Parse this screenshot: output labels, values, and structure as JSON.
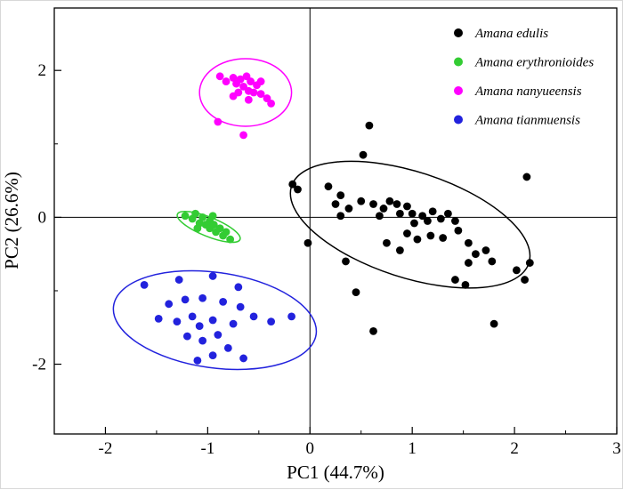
{
  "chart_data": {
    "type": "scatter",
    "title": "",
    "xlabel": "PC1 (44.7%)",
    "ylabel": "PC2 (26.6%)",
    "xlim": [
      -2.5,
      3.0
    ],
    "ylim": [
      -2.95,
      2.85
    ],
    "x_ticks": [
      -2,
      -1,
      0,
      1,
      2,
      3
    ],
    "y_ticks": [
      -2,
      0,
      2
    ],
    "x_minor_step": 0.5,
    "y_minor_step": 1,
    "grid": false,
    "legend_position": "top-right",
    "reference_lines": {
      "vertical_x": 0,
      "horizontal_y": 0
    },
    "series": [
      {
        "id": "amana-edulis",
        "name": "Amana edulis",
        "color": "#000000",
        "ellipse": {
          "cx": 0.98,
          "cy": -0.1,
          "rx": 1.22,
          "ry": 0.72,
          "angle": -18
        },
        "points": [
          [
            0.58,
            1.25
          ],
          [
            0.52,
            0.85
          ],
          [
            -0.17,
            0.45
          ],
          [
            -0.12,
            0.38
          ],
          [
            0.18,
            0.42
          ],
          [
            0.3,
            0.3
          ],
          [
            0.25,
            0.18
          ],
          [
            0.38,
            0.12
          ],
          [
            0.5,
            0.22
          ],
          [
            0.3,
            0.02
          ],
          [
            0.62,
            0.18
          ],
          [
            0.72,
            0.12
          ],
          [
            0.68,
            0.02
          ],
          [
            0.78,
            0.22
          ],
          [
            0.85,
            0.18
          ],
          [
            0.88,
            0.05
          ],
          [
            0.95,
            0.15
          ],
          [
            1.0,
            0.05
          ],
          [
            1.02,
            -0.08
          ],
          [
            1.1,
            0.02
          ],
          [
            1.15,
            -0.05
          ],
          [
            1.2,
            0.08
          ],
          [
            1.28,
            -0.02
          ],
          [
            1.35,
            0.05
          ],
          [
            1.42,
            -0.05
          ],
          [
            0.95,
            -0.22
          ],
          [
            1.05,
            -0.3
          ],
          [
            1.18,
            -0.25
          ],
          [
            1.3,
            -0.28
          ],
          [
            0.75,
            -0.35
          ],
          [
            0.88,
            -0.45
          ],
          [
            1.45,
            -0.18
          ],
          [
            1.55,
            -0.35
          ],
          [
            1.62,
            -0.5
          ],
          [
            1.72,
            -0.45
          ],
          [
            1.78,
            -0.6
          ],
          [
            1.55,
            -0.62
          ],
          [
            1.42,
            -0.85
          ],
          [
            1.52,
            -0.92
          ],
          [
            2.02,
            -0.72
          ],
          [
            2.1,
            -0.85
          ],
          [
            2.15,
            -0.62
          ],
          [
            2.12,
            0.55
          ],
          [
            0.45,
            -1.02
          ],
          [
            0.62,
            -1.55
          ],
          [
            1.8,
            -1.45
          ],
          [
            -0.02,
            -0.35
          ],
          [
            0.35,
            -0.6
          ]
        ]
      },
      {
        "id": "amana-erythronioides",
        "name": "Amana erythronioides",
        "color": "#33CC33",
        "ellipse": {
          "cx": -0.99,
          "cy": -0.13,
          "rx": 0.33,
          "ry": 0.13,
          "angle": -22
        },
        "points": [
          [
            -1.22,
            0.02
          ],
          [
            -1.15,
            -0.02
          ],
          [
            -1.12,
            0.05
          ],
          [
            -1.08,
            -0.08
          ],
          [
            -1.05,
            0.0
          ],
          [
            -1.02,
            -0.1
          ],
          [
            -0.98,
            -0.05
          ],
          [
            -0.98,
            -0.15
          ],
          [
            -0.94,
            -0.1
          ],
          [
            -0.92,
            -0.2
          ],
          [
            -0.88,
            -0.15
          ],
          [
            -0.85,
            -0.25
          ],
          [
            -0.82,
            -0.2
          ],
          [
            -0.78,
            -0.3
          ],
          [
            -1.1,
            -0.15
          ],
          [
            -0.95,
            0.02
          ]
        ]
      },
      {
        "id": "amana-nanyueensis",
        "name": "Amana nanyueensis",
        "color": "#FF00FF",
        "ellipse": {
          "cx": -0.63,
          "cy": 1.7,
          "rx": 0.45,
          "ry": 0.46,
          "angle": 0
        },
        "points": [
          [
            -0.88,
            1.92
          ],
          [
            -0.82,
            1.85
          ],
          [
            -0.75,
            1.9
          ],
          [
            -0.72,
            1.82
          ],
          [
            -0.68,
            1.88
          ],
          [
            -0.62,
            1.92
          ],
          [
            -0.58,
            1.85
          ],
          [
            -0.52,
            1.8
          ],
          [
            -0.48,
            1.85
          ],
          [
            -0.65,
            1.78
          ],
          [
            -0.6,
            1.72
          ],
          [
            -0.55,
            1.7
          ],
          [
            -0.7,
            1.7
          ],
          [
            -0.75,
            1.65
          ],
          [
            -0.48,
            1.68
          ],
          [
            -0.42,
            1.62
          ],
          [
            -0.38,
            1.55
          ],
          [
            -0.6,
            1.6
          ],
          [
            -0.9,
            1.3
          ],
          [
            -0.65,
            1.12
          ]
        ]
      },
      {
        "id": "amana-tianmuensis",
        "name": "Amana tianmuensis",
        "color": "#2222DD",
        "ellipse": {
          "cx": -0.93,
          "cy": -1.4,
          "rx": 1.0,
          "ry": 0.65,
          "angle": -8
        },
        "points": [
          [
            -1.62,
            -0.92
          ],
          [
            -1.28,
            -0.85
          ],
          [
            -0.95,
            -0.8
          ],
          [
            -0.7,
            -0.95
          ],
          [
            -1.38,
            -1.18
          ],
          [
            -1.22,
            -1.12
          ],
          [
            -1.05,
            -1.1
          ],
          [
            -0.85,
            -1.15
          ],
          [
            -0.68,
            -1.22
          ],
          [
            -1.48,
            -1.38
          ],
          [
            -1.3,
            -1.42
          ],
          [
            -1.15,
            -1.35
          ],
          [
            -1.08,
            -1.48
          ],
          [
            -0.95,
            -1.4
          ],
          [
            -0.75,
            -1.45
          ],
          [
            -0.55,
            -1.35
          ],
          [
            -0.38,
            -1.42
          ],
          [
            -0.18,
            -1.35
          ],
          [
            -1.2,
            -1.62
          ],
          [
            -1.05,
            -1.68
          ],
          [
            -0.9,
            -1.6
          ],
          [
            -0.8,
            -1.78
          ],
          [
            -0.95,
            -1.88
          ],
          [
            -1.1,
            -1.95
          ],
          [
            -0.65,
            -1.92
          ]
        ]
      }
    ]
  }
}
